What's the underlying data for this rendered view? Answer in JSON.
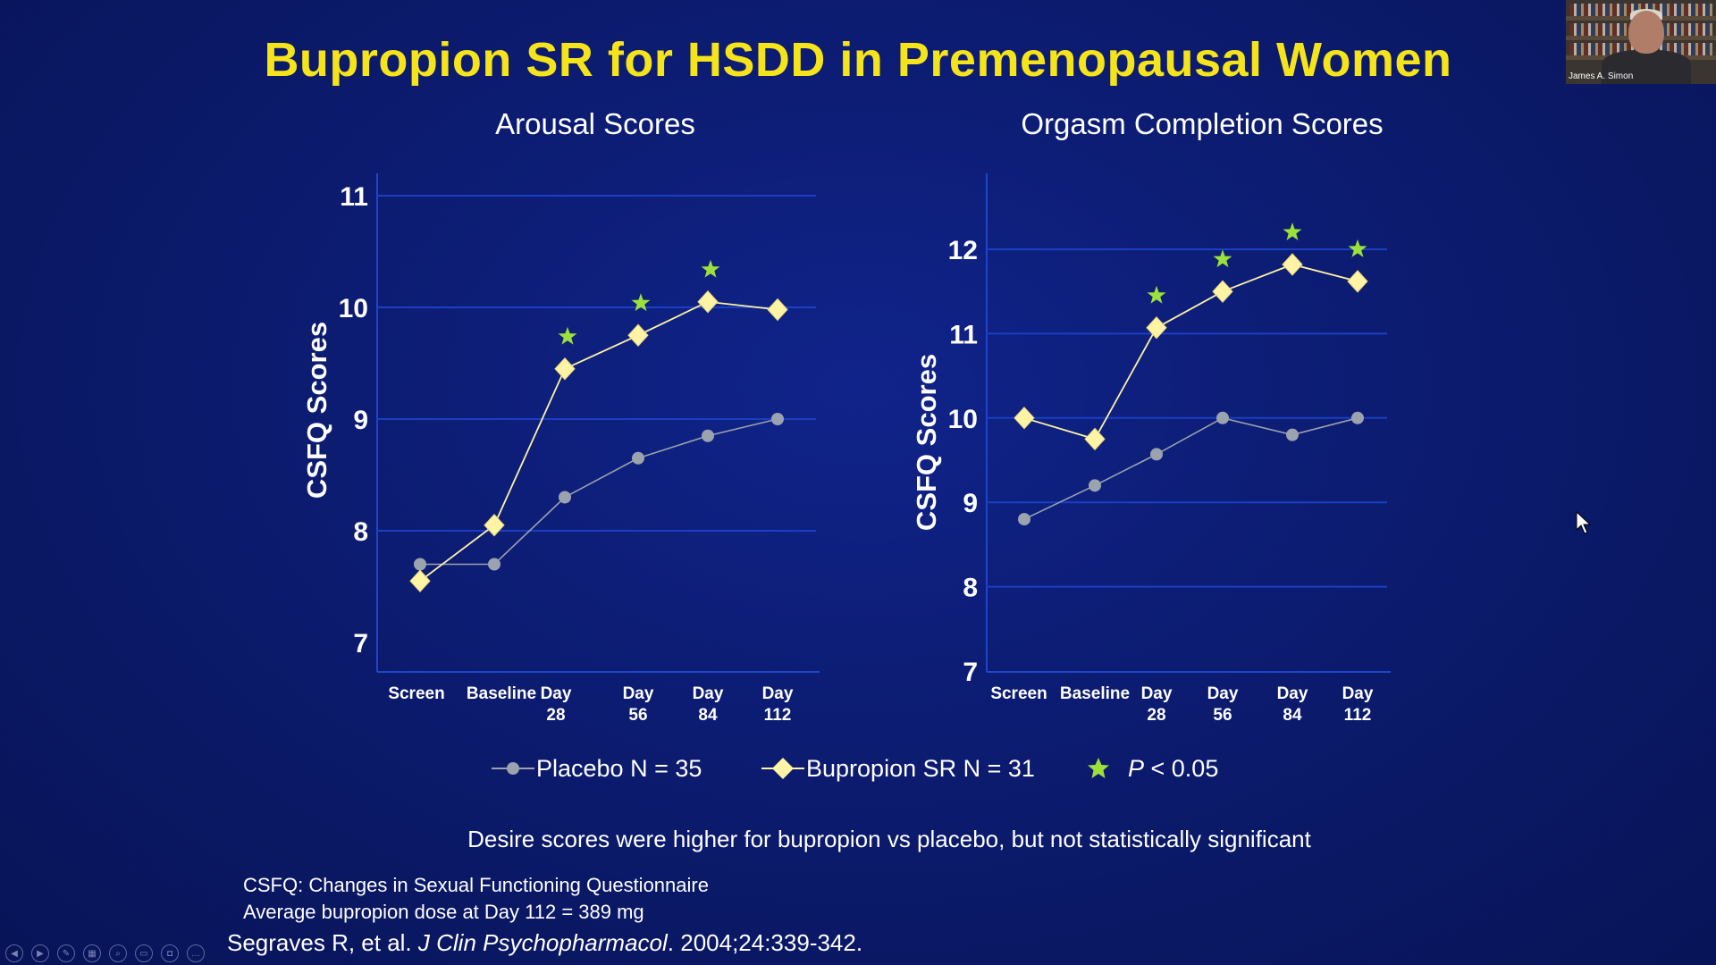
{
  "slide": {
    "title": "Bupropion SR for HSDD in Premenopausal Women",
    "note": "Desire scores were higher for bupropion vs placebo,  but not statistically significant",
    "footnotes": [
      "CSFQ: Changes in Sexual Functioning Questionnaire",
      "Average bupropion dose at Day 112 = 389 mg"
    ],
    "citation": {
      "authors": "Segraves R, et al. ",
      "journal": "J Clin Psychopharmacol",
      "rest": ". 2004;24:339-342."
    },
    "webcam": {
      "name": "James A. Simon"
    },
    "controls": [
      "previous-icon",
      "next-icon",
      "pen-icon",
      "slides-icon",
      "zoom-icon",
      "subtitles-icon",
      "camera-icon",
      "more-icon"
    ]
  },
  "legend": {
    "placebo": "Placebo N = 35",
    "bupropion": "Bupropion SR N = 31",
    "significance_p": "P",
    "significance_rest": " < 0.05"
  },
  "colors": {
    "background": "#0b1a6b",
    "title": "#f6e41b",
    "placebo": "#9aa3ae",
    "bupropion": "#fff3a6",
    "star": "#9be03b",
    "gridline": "#1a3fc2"
  },
  "chart_data": [
    {
      "type": "line",
      "title": "Arousal Scores",
      "ylabel": "CSFQ Scores",
      "xlabel": "",
      "categories": [
        [
          "Screen"
        ],
        [
          "Baseline"
        ],
        [
          "Day",
          "28"
        ],
        [
          "Day",
          "56"
        ],
        [
          "Day",
          "84"
        ],
        [
          "Day",
          "112"
        ]
      ],
      "ylim": [
        7,
        11
      ],
      "yticks": [
        7,
        8,
        9,
        10,
        11
      ],
      "grid": true,
      "series": [
        {
          "name": "Placebo N = 35",
          "marker": "circle",
          "values": [
            7.7,
            7.7,
            8.3,
            8.65,
            8.85,
            9.0
          ]
        },
        {
          "name": "Bupropion SR N = 31",
          "marker": "diamond",
          "values": [
            7.55,
            8.05,
            9.45,
            9.75,
            10.05,
            9.98
          ]
        }
      ],
      "significant": [
        false,
        false,
        true,
        true,
        true,
        false
      ]
    },
    {
      "type": "line",
      "title": "Orgasm Completion Scores",
      "ylabel": "CSFQ Scores",
      "xlabel": "",
      "categories": [
        [
          "Screen"
        ],
        [
          "Baseline"
        ],
        [
          "Day",
          "28"
        ],
        [
          "Day",
          "56"
        ],
        [
          "Day",
          "84"
        ],
        [
          "Day",
          "112"
        ]
      ],
      "ylim": [
        7,
        12
      ],
      "yticks": [
        7,
        8,
        9,
        10,
        11,
        12
      ],
      "grid": true,
      "series": [
        {
          "name": "Placebo N = 35",
          "marker": "circle",
          "values": [
            8.8,
            9.2,
            9.57,
            10.0,
            9.8,
            10.0
          ]
        },
        {
          "name": "Bupropion SR N = 31",
          "marker": "diamond",
          "values": [
            10.0,
            9.75,
            11.07,
            11.5,
            11.82,
            11.62
          ]
        }
      ],
      "significant": [
        false,
        false,
        true,
        true,
        true,
        true
      ]
    }
  ]
}
